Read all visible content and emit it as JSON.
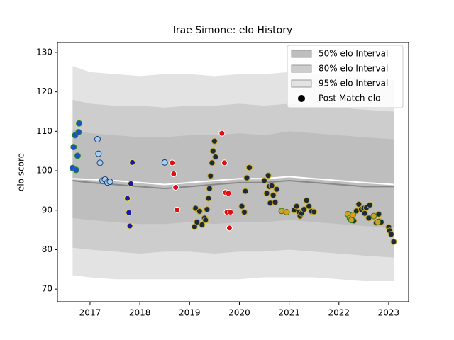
{
  "chart_data": {
    "type": "interval-scatter",
    "title": "Irae Simone: elo History",
    "y_label": "elo score",
    "xlim": [
      2016.345,
      2023.4
    ],
    "xticks": [
      2017,
      2018,
      2019,
      2020,
      2021,
      2022,
      2023
    ],
    "ylim": [
      66.8,
      132.5
    ],
    "yticks": [
      70,
      80,
      90,
      100,
      110,
      120,
      130
    ],
    "legend_position": "upper right",
    "band_x": [
      2016.65,
      2017.0,
      2017.5,
      2018.0,
      2018.5,
      2019.0,
      2019.5,
      2020.0,
      2020.5,
      2021.0,
      2021.5,
      2022.0,
      2022.5,
      2023.1
    ],
    "bands": [
      {
        "name": "95% elo Interval",
        "color": "#e3e3e3",
        "upper": [
          126.5,
          125,
          124.5,
          124,
          124.5,
          124.5,
          124,
          124.5,
          124.5,
          125,
          124.5,
          124,
          123.5,
          123
        ],
        "lower": [
          73.5,
          73,
          72.5,
          72.5,
          72.5,
          72.5,
          72.5,
          72.5,
          73,
          73,
          73,
          72.5,
          72,
          72
        ]
      },
      {
        "name": "80% elo Interval",
        "color": "#cdcdcd",
        "upper": [
          118,
          117,
          116.5,
          116.5,
          116,
          116.5,
          116.5,
          117,
          116.5,
          117,
          116.5,
          116,
          115.5,
          115
        ],
        "lower": [
          80.5,
          80,
          79.5,
          79,
          79.5,
          79.5,
          79,
          79.5,
          79.5,
          80,
          79.5,
          79,
          78.5,
          78
        ]
      },
      {
        "name": "50% elo Interval",
        "color": "#bebebe",
        "upper": [
          110.5,
          109.5,
          109,
          108.5,
          108.5,
          109,
          109,
          109.5,
          109,
          110,
          109.5,
          109,
          108.5,
          108
        ],
        "lower": [
          88,
          87.5,
          87,
          86.5,
          86.5,
          87,
          86.5,
          87,
          87,
          87.5,
          87,
          86.5,
          86,
          85.5
        ]
      }
    ],
    "lines": [
      {
        "color": "#888888",
        "values": [
          97.5,
          97,
          96.5,
          96,
          95.5,
          96,
          96.5,
          97,
          97,
          97.5,
          97,
          96.5,
          96,
          96
        ]
      },
      {
        "color": "#ffffff",
        "values": [
          98,
          97.8,
          97.5,
          97,
          96.5,
          97,
          97.5,
          98,
          98,
          98.5,
          98,
          97.5,
          97,
          96.5
        ]
      }
    ],
    "points": {
      "name": "Post Match elo",
      "legend_color": "#000000",
      "groups": [
        {
          "color": "#1f4fc8",
          "edgecolor": "#2a8a2a",
          "x": [
            2016.65,
            2016.67,
            2016.7,
            2016.72,
            2016.75,
            2016.77,
            2016.78
          ],
          "values": [
            100.7,
            106,
            109,
            100.2,
            103.8,
            109.8,
            112
          ]
        },
        {
          "color": "#a6cef0",
          "edgecolor": "#1c3a6a",
          "x": [
            2017.15,
            2017.17,
            2017.2,
            2017.25,
            2017.3,
            2017.35,
            2017.4,
            2018.5
          ],
          "values": [
            108,
            104.3,
            102,
            97.5,
            97.8,
            97,
            97.2,
            102.1
          ]
        },
        {
          "color": "#1a1aa0",
          "edgecolor": "#e8d84a",
          "x": [
            2017.75,
            2017.78,
            2017.8,
            2017.82,
            2017.85
          ],
          "values": [
            93,
            89.4,
            86,
            96.7,
            102.1
          ]
        },
        {
          "color": "#e01010",
          "edgecolor": "#ffffff",
          "x": [
            2018.65,
            2018.68,
            2018.72,
            2018.75,
            2019.65,
            2019.7,
            2019.72,
            2019.75,
            2019.78,
            2019.8,
            2019.82
          ],
          "values": [
            102,
            99.2,
            95.8,
            90.1,
            109.5,
            102,
            94.5,
            89.5,
            94.3,
            85.5,
            89.5
          ]
        },
        {
          "color": "#1c2b3a",
          "edgecolor": "#c8a820",
          "x": [
            2019.1,
            2019.12,
            2019.15,
            2019.2,
            2019.25,
            2019.3,
            2019.32,
            2019.35,
            2019.38,
            2019.4,
            2019.42,
            2019.45,
            2019.47,
            2019.5,
            2019.52,
            2020.05,
            2020.1,
            2020.12,
            2020.15,
            2020.2,
            2020.5,
            2020.55,
            2020.58,
            2020.6,
            2020.62,
            2020.65,
            2020.68,
            2020.72,
            2020.75,
            2021.1,
            2021.15,
            2021.2,
            2021.22,
            2021.25,
            2021.3,
            2021.35,
            2021.4,
            2021.45,
            2021.5,
            2022.2,
            2022.3,
            2022.35,
            2022.4,
            2022.45,
            2022.5,
            2022.52,
            2022.55,
            2022.6,
            2022.62,
            2022.75,
            2022.8,
            2022.82,
            2022.85,
            2023.0,
            2023.02,
            2023.05,
            2023.1
          ],
          "values": [
            85.8,
            90.5,
            87,
            89.7,
            86.3,
            88,
            87.5,
            90.2,
            93,
            95.5,
            98.7,
            102,
            105,
            107.5,
            103.5,
            91,
            89.5,
            94.8,
            98.2,
            100.8,
            97.5,
            94.3,
            98.8,
            96,
            91.8,
            96.2,
            93.8,
            92,
            95.3,
            90,
            91,
            89.5,
            88.5,
            89.2,
            90.2,
            92.5,
            91,
            89.7,
            89.6,
            88.5,
            87.3,
            89.8,
            91.5,
            90.2,
            90.5,
            89.2,
            90.6,
            88,
            91.3,
            86.8,
            89,
            87.2,
            87,
            85.7,
            84.8,
            83.9,
            82
          ]
        },
        {
          "color": "#d4a020",
          "edgecolor": "#2a7a2a",
          "x": [
            2020.85,
            2020.95,
            2022.18,
            2022.22,
            2022.25,
            2022.28,
            2022.7,
            2022.78
          ],
          "values": [
            89.8,
            89.5,
            89,
            88,
            87.5,
            88.8,
            88.5,
            87
          ]
        }
      ]
    }
  }
}
